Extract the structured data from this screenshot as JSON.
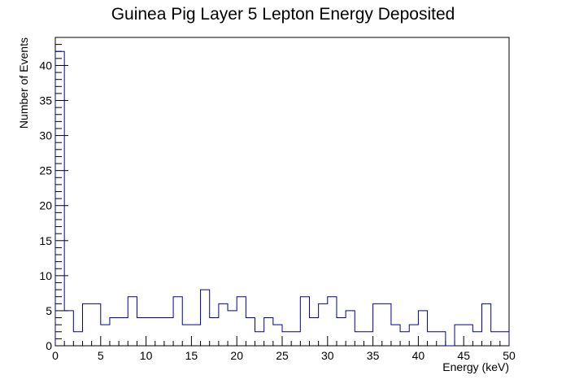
{
  "chart_data": {
    "type": "histogram",
    "title": "Guinea Pig Layer 5 Lepton Energy Deposited",
    "xlabel": "Energy (keV)",
    "ylabel": "Number of Events",
    "xlim": [
      0,
      50
    ],
    "ylim": [
      0,
      44
    ],
    "x_ticks": [
      "0",
      "5",
      "10",
      "15",
      "20",
      "25",
      "30",
      "35",
      "40",
      "45",
      "50"
    ],
    "y_ticks": [
      "0",
      "5",
      "10",
      "15",
      "20",
      "25",
      "30",
      "35",
      "40"
    ],
    "bin_width": 1,
    "bin_edges_start": 0,
    "values": [
      42,
      5,
      2,
      6,
      6,
      3,
      4,
      4,
      7,
      4,
      4,
      4,
      4,
      7,
      3,
      3,
      8,
      4,
      6,
      5,
      7,
      4,
      2,
      4,
      3,
      2,
      2,
      7,
      4,
      6,
      7,
      4,
      5,
      2,
      2,
      6,
      6,
      3,
      2,
      3,
      5,
      2,
      2,
      0,
      3,
      3,
      2,
      6,
      2,
      2
    ],
    "line_color": "#000099",
    "grid": false,
    "legend": "none"
  }
}
